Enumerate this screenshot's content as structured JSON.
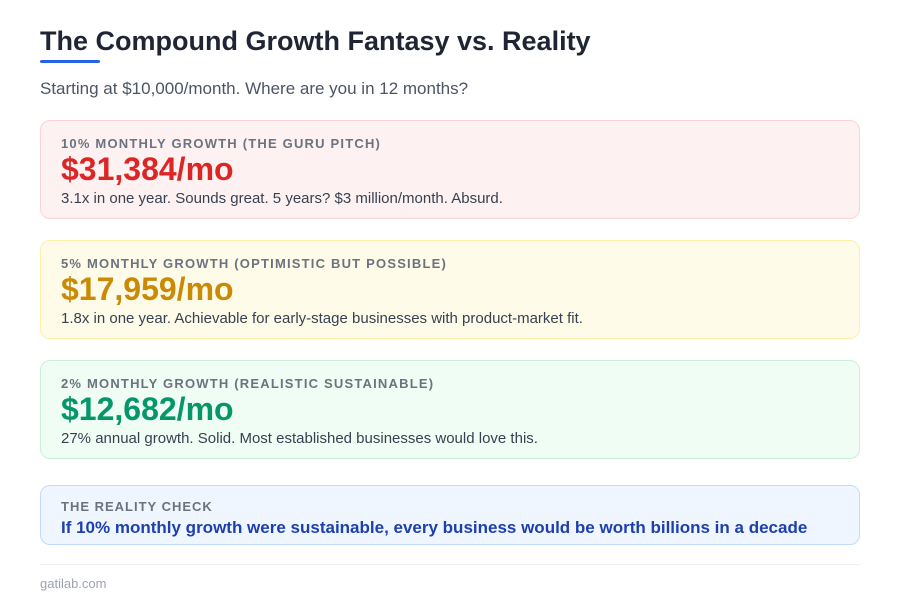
{
  "header": {
    "title": "The Compound Growth Fantasy vs. Reality",
    "subtitle": "Starting at $10,000/month. Where are you in 12 months?"
  },
  "scenarios": [
    {
      "label": "10% MONTHLY GROWTH (THE GURU PITCH)",
      "value": "$31,384/mo",
      "description": "3.1x in one year. Sounds great. 5 years? $3 million/month. Absurd.",
      "color": "#dc2626"
    },
    {
      "label": "5% MONTHLY GROWTH (OPTIMISTIC BUT POSSIBLE)",
      "value": "$17,959/mo",
      "description": "1.8x in one year. Achievable for early-stage businesses with product-market fit.",
      "color": "#ca8a04"
    },
    {
      "label": "2% MONTHLY GROWTH (REALISTIC SUSTAINABLE)",
      "value": "$12,682/mo",
      "description": "27% annual growth. Solid. Most established businesses would love this.",
      "color": "#059669"
    }
  ],
  "reality": {
    "label": "THE REALITY CHECK",
    "message": "If 10% monthly growth were sustainable, every business would be worth billions in a decade"
  },
  "footer": {
    "source": "gatilab.com"
  }
}
